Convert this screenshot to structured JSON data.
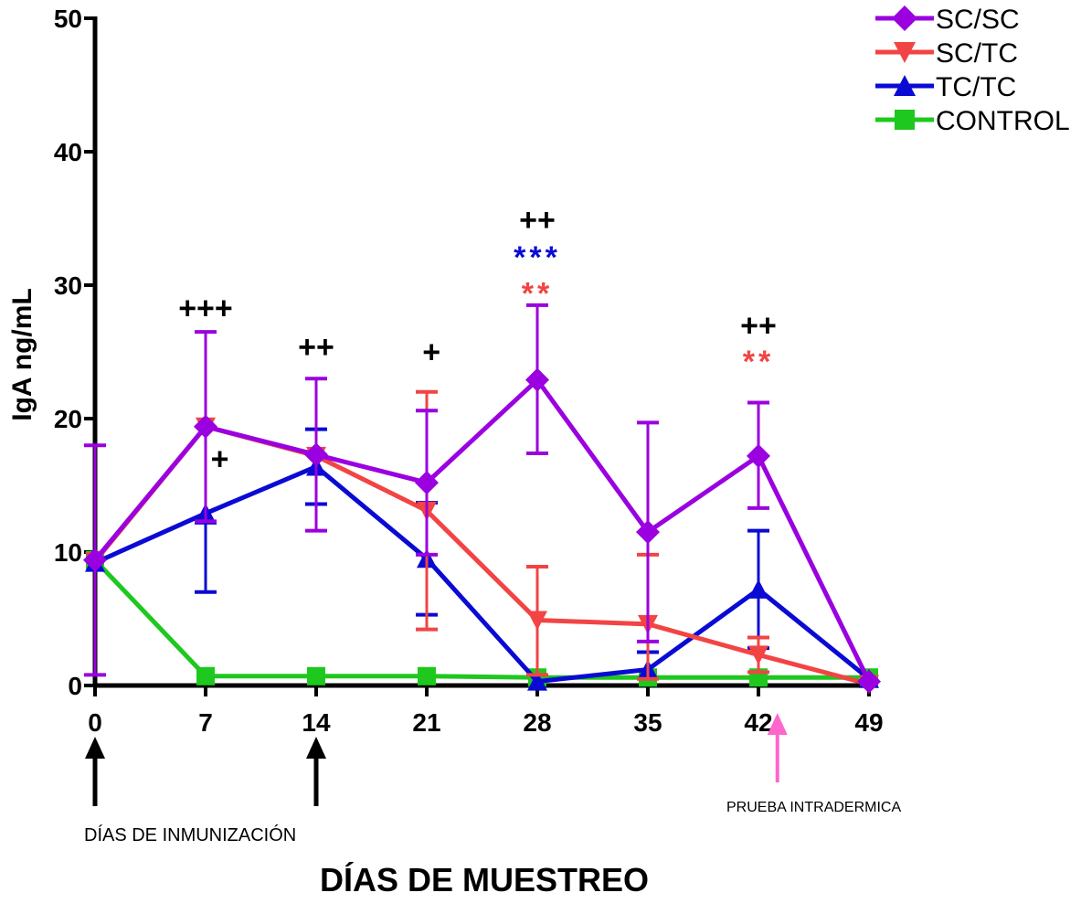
{
  "chart_data": {
    "type": "line",
    "title": "",
    "xlabel": "DÍAS DE MUESTREO",
    "ylabel": "IgA ng/mL",
    "x": [
      0,
      7,
      14,
      21,
      28,
      35,
      42,
      49
    ],
    "x_tick_labels": [
      "0",
      "7",
      "14",
      "21",
      "28",
      "35",
      "42",
      "49"
    ],
    "y_tick_labels": [
      "0",
      "10",
      "20",
      "30",
      "40",
      "50"
    ],
    "xlim": [
      0,
      49
    ],
    "ylim": [
      0,
      50
    ],
    "grid": false,
    "legend_position": "top-right",
    "series": [
      {
        "name": "SC/SC",
        "color": "#9a00e0",
        "marker": "diamond",
        "values": [
          9.4,
          19.4,
          17.3,
          15.2,
          22.9,
          11.5,
          17.2,
          0.3
        ],
        "err_high": [
          18.0,
          26.5,
          23.0,
          20.6,
          28.5,
          19.7,
          21.2,
          null
        ],
        "err_low": [
          0.8,
          12.3,
          11.6,
          9.8,
          17.4,
          3.3,
          13.3,
          null
        ]
      },
      {
        "name": "SC/TC",
        "color": "#f24444",
        "marker": "triangle-down",
        "values": [
          9.3,
          19.4,
          17.2,
          13.1,
          4.9,
          4.6,
          2.3,
          0.1
        ],
        "err_high": [
          null,
          null,
          null,
          22.0,
          8.9,
          9.8,
          3.6,
          null
        ],
        "err_low": [
          null,
          null,
          null,
          4.2,
          0.8,
          0.5,
          1.0,
          null
        ]
      },
      {
        "name": "TC/TC",
        "color": "#0a0ad4",
        "marker": "triangle-up",
        "values": [
          9.2,
          12.9,
          16.4,
          9.5,
          0.3,
          1.2,
          7.2,
          0.5
        ],
        "err_high": [
          null,
          12.2,
          19.2,
          13.7,
          null,
          2.5,
          11.6,
          null
        ],
        "err_low": [
          null,
          7.0,
          13.6,
          5.3,
          null,
          null,
          2.8,
          null
        ]
      },
      {
        "name": "CONTROL",
        "color": "#1ec81e",
        "marker": "square",
        "values": [
          9.4,
          0.7,
          0.7,
          0.7,
          0.6,
          0.6,
          0.6,
          0.6
        ]
      }
    ],
    "annotations": [
      {
        "text": "+++",
        "x": 7,
        "y": 27.5,
        "color": "#000000"
      },
      {
        "text": "+",
        "x": 7.9,
        "y": 16.2,
        "color": "#000000"
      },
      {
        "text": "++",
        "x": 14,
        "y": 24.6,
        "color": "#000000"
      },
      {
        "text": "+",
        "x": 21.3,
        "y": 24.2,
        "color": "#000000"
      },
      {
        "text": "++",
        "x": 28,
        "y": 34.1,
        "color": "#000000"
      },
      {
        "text": "***",
        "x": 28,
        "y": 31.3,
        "color": "#0a0ad4"
      },
      {
        "text": "**",
        "x": 28,
        "y": 28.6,
        "color": "#f24444"
      },
      {
        "text": "++",
        "x": 42,
        "y": 26.2,
        "color": "#000000"
      },
      {
        "text": "**",
        "x": 42,
        "y": 23.5,
        "color": "#f24444"
      }
    ],
    "notes": {
      "immunization_label": "DÍAS DE INMUNIZACIÓN",
      "immunization_days": [
        0,
        14
      ],
      "intradermal_label": "PRUEBA INTRADERMICA",
      "intradermal_day": 43.2,
      "immunization_arrow_color": "#000000",
      "intradermal_arrow_color": "#ff66cc"
    }
  }
}
